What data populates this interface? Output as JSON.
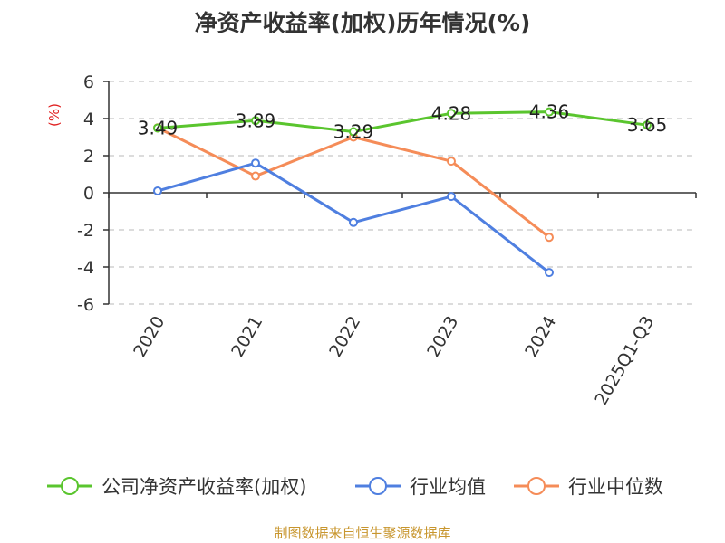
{
  "title": "净资产收益率(加权)历年情况(%)",
  "source": "制图数据来自恒生聚源数据库",
  "colors": {
    "company": "#5ac52e",
    "industry_avg": "#4f7fe0",
    "industry_median": "#f58c58",
    "unit": "#e02020",
    "source": "#c8962e",
    "grid": "#c8c8c8",
    "axis": "#333333"
  },
  "chart_data": {
    "type": "line",
    "title": "净资产收益率(加权)历年情况(%)",
    "ylabel": "(%)",
    "ylim": [
      -6,
      6
    ],
    "yticks": [
      6,
      4,
      2,
      0,
      -2,
      -4,
      -6
    ],
    "categories": [
      "2020",
      "2021",
      "2022",
      "2023",
      "2024",
      "2025Q1-Q3"
    ],
    "grid": true,
    "legend_position": "bottom",
    "series": [
      {
        "name": "公司净资产收益率(加权)",
        "color_key": "company",
        "values": [
          3.49,
          3.89,
          3.29,
          4.28,
          4.36,
          3.65
        ],
        "labels": [
          "3.49",
          "3.89",
          "3.29",
          "4.28",
          "4.36",
          "3.65"
        ],
        "show_labels": true
      },
      {
        "name": "行业均值",
        "color_key": "industry_avg",
        "values": [
          0.1,
          1.6,
          -1.6,
          -0.2,
          -4.3,
          null
        ],
        "show_labels": false
      },
      {
        "name": "行业中位数",
        "color_key": "industry_median",
        "values": [
          3.5,
          0.9,
          3.0,
          1.7,
          -2.4,
          null
        ],
        "show_labels": false
      }
    ]
  }
}
